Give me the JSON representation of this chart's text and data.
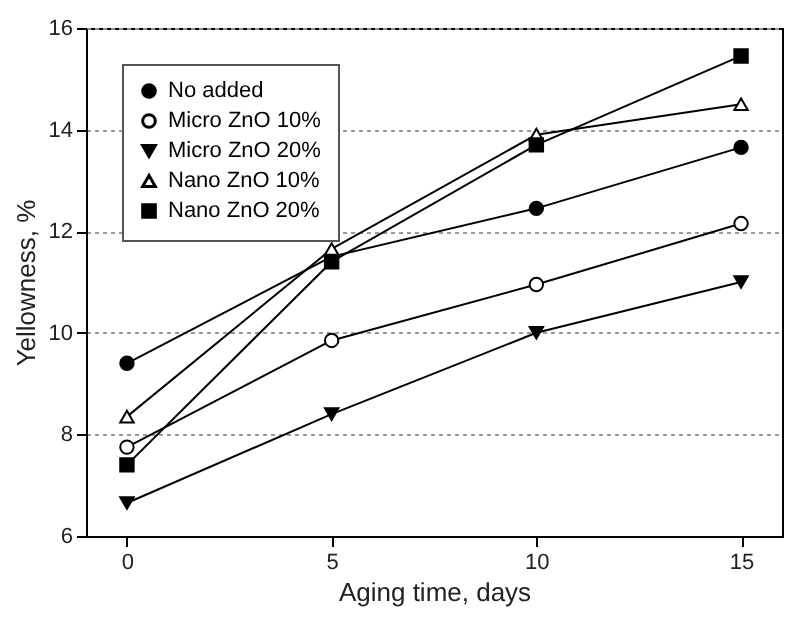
{
  "chart_data": {
    "type": "line",
    "xlabel": "Aging time, days",
    "ylabel": "Yellowness, %",
    "x": [
      0,
      5,
      10,
      15
    ],
    "xlim": [
      -1,
      16
    ],
    "xticks": [
      0,
      5,
      10,
      15
    ],
    "ylim": [
      6,
      16
    ],
    "yticks": [
      6,
      8,
      10,
      12,
      14,
      16
    ],
    "grid": "y",
    "legend": "top left",
    "series": [
      {
        "name": "No added",
        "color": "#000000",
        "marker": "circle",
        "values": [
          9.4,
          11.5,
          12.45,
          13.65
        ]
      },
      {
        "name": "Micro ZnO 10%",
        "color": "#000000",
        "marker": "circle-open",
        "values": [
          7.75,
          9.85,
          10.95,
          12.15
        ]
      },
      {
        "name": "Micro ZnO 20%",
        "color": "#000000",
        "marker": "triangle-down",
        "values": [
          6.65,
          8.4,
          10.0,
          11.0
        ]
      },
      {
        "name": "Nano ZnO 10%",
        "color": "#000000",
        "marker": "triangle-open",
        "values": [
          8.35,
          11.65,
          13.9,
          14.5
        ]
      },
      {
        "name": "Nano ZnO 20%",
        "color": "#000000",
        "marker": "square",
        "values": [
          7.4,
          11.4,
          13.7,
          15.45
        ]
      }
    ]
  }
}
